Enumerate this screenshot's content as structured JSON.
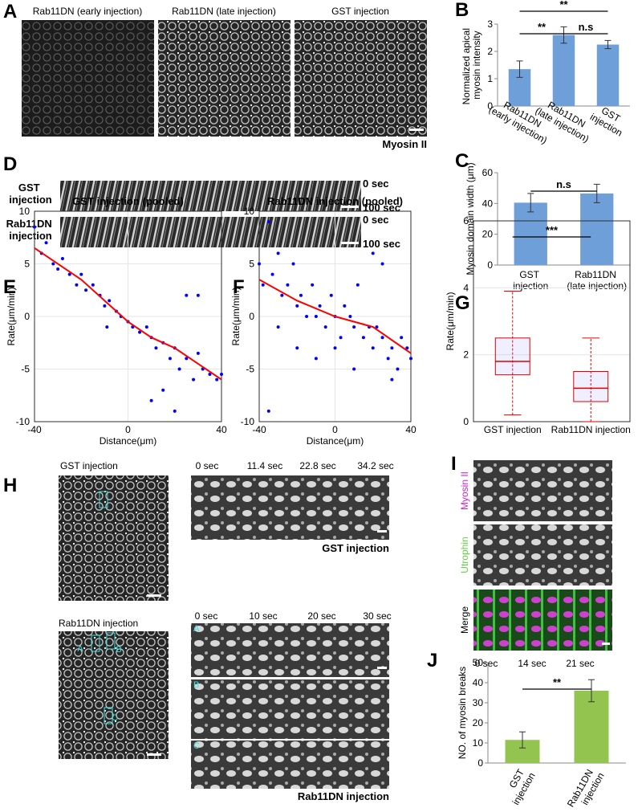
{
  "figure": {
    "letters": [
      "A",
      "B",
      "C",
      "D",
      "E",
      "F",
      "G",
      "H",
      "I",
      "J"
    ],
    "a_titles": [
      "Rab11DN (early injection)",
      "Rab11DN (late injection)",
      "GST injection"
    ],
    "a_stain": "Myosin II",
    "d_rows": [
      "GST injection",
      "Rab11DN injection"
    ],
    "d_times": [
      [
        "0 sec",
        "100 sec"
      ],
      [
        "0 sec",
        "100 sec"
      ]
    ],
    "h_left": [
      "GST injection",
      "Rab11DN injection"
    ],
    "h_roi": [
      "A",
      "B",
      "C"
    ],
    "h_times_gst": [
      "0 sec",
      "11.4 sec",
      "22.8 sec",
      "34.2 sec"
    ],
    "h_gst": "GST injection",
    "h_times_rab": [
      "0 sec",
      "10 sec",
      "20 sec",
      "30 sec"
    ],
    "h_strip_labels": [
      "A",
      "B",
      "C"
    ],
    "h_rab": "Rab11DN injection",
    "i_channels": [
      "Myosin II",
      "Utrophin",
      "Merge"
    ],
    "i_times": [
      "0 sec",
      "14 sec",
      "21 sec"
    ]
  },
  "chart_data": [
    {
      "type": "bar",
      "ylabel": "Normalized apical myosin intensity",
      "categories": [
        "Rab11DN (early injection)",
        "Rab11DN (late injection)",
        "GST injection"
      ],
      "values": [
        1.35,
        2.6,
        2.25
      ],
      "errors": [
        0.3,
        0.3,
        0.15
      ],
      "color": "#6f9fd8",
      "ylim": [
        0,
        3
      ],
      "yticks": [
        0,
        1,
        2,
        3
      ],
      "annotations": [
        "**",
        "**",
        "n.s"
      ]
    },
    {
      "type": "bar",
      "ylabel": "Myosin domain width (μm)",
      "categories": [
        "GST injection",
        "Rab11DN (late injection)"
      ],
      "values": [
        40.5,
        46.5
      ],
      "errors": [
        6,
        6
      ],
      "color": "#6f9fd8",
      "ylim": [
        0,
        60
      ],
      "yticks": [
        0,
        20,
        40,
        60
      ],
      "annotations": [
        "n.s"
      ]
    },
    {
      "type": "scatter",
      "title": "GST injection (pooled)",
      "xlabel": "Distance(μm)",
      "ylabel": "Rate(μm/min)",
      "xlim": [
        -40,
        40
      ],
      "xticks": [
        -40,
        0,
        40
      ],
      "ylim": [
        -10,
        10
      ],
      "yticks": [
        -10,
        -5,
        0,
        5,
        10
      ],
      "grid": true,
      "series": [
        {
          "color": "#0000ff",
          "x": [
            -40,
            -37,
            -35,
            -32,
            -30,
            -28,
            -25,
            -22,
            -20,
            -18,
            -15,
            -12,
            -10,
            -8,
            -5,
            -3,
            0,
            2,
            5,
            8,
            10,
            12,
            15,
            18,
            20,
            22,
            25,
            28,
            30,
            32,
            35,
            38,
            40,
            -9,
            25,
            30,
            10,
            15,
            20
          ],
          "values": [
            8.5,
            6,
            7,
            5,
            4.5,
            5.5,
            4,
            3,
            4,
            2.5,
            3,
            2,
            1,
            1.5,
            0.5,
            0,
            -0.5,
            -1,
            -1.5,
            -1,
            -2,
            -3,
            -2.5,
            -4,
            -3,
            -5,
            -4,
            -6,
            -3.5,
            -5,
            -5.5,
            -6,
            -5.5,
            -1,
            2,
            2,
            -8,
            -7,
            -9
          ]
        },
        {
          "color": "#ff0000",
          "type": "line",
          "x": [
            -40,
            -20,
            -10,
            0,
            10,
            20,
            30,
            40
          ],
          "values": [
            6.5,
            3.5,
            1.5,
            -0.5,
            -2,
            -3,
            -4.5,
            -6
          ]
        }
      ]
    },
    {
      "type": "scatter",
      "title": "Rab11DN injection (pooled)",
      "xlabel": "Distance(μm)",
      "ylabel": "Rate(μm/min)",
      "xlim": [
        -40,
        40
      ],
      "xticks": [
        -40,
        0,
        40
      ],
      "ylim": [
        -10,
        10
      ],
      "yticks": [
        -10,
        -5,
        0,
        5,
        10
      ],
      "grid": true,
      "series": [
        {
          "color": "#0000ff",
          "x": [
            -40,
            -38,
            -35,
            -33,
            -30,
            -28,
            -25,
            -22,
            -20,
            -18,
            -15,
            -12,
            -10,
            -8,
            -5,
            -2,
            0,
            3,
            5,
            8,
            10,
            12,
            15,
            18,
            20,
            22,
            25,
            28,
            30,
            33,
            35,
            38,
            40,
            -30,
            -20,
            -10,
            0,
            10,
            20,
            30,
            -35,
            25
          ],
          "values": [
            5,
            3,
            9,
            4,
            6,
            2,
            3,
            5,
            1,
            2,
            0,
            3,
            0,
            1,
            -1,
            2,
            0,
            -2,
            1,
            0,
            -1,
            3,
            -2,
            -1,
            -3,
            -1,
            -2,
            -4,
            -3,
            -5,
            -2,
            -3,
            -4,
            -1,
            -3,
            -4,
            -3,
            -5,
            6,
            -6,
            -9,
            5
          ]
        },
        {
          "color": "#ff0000",
          "type": "line",
          "x": [
            -40,
            -20,
            0,
            20,
            40
          ],
          "values": [
            3.5,
            1.5,
            0,
            -1,
            -3.5
          ]
        }
      ]
    },
    {
      "type": "box",
      "ylabel": "Rate(μm/min)",
      "categories": [
        "GST injection",
        "Rab11DN injection"
      ],
      "whisker_low": [
        0.2,
        0
      ],
      "q1": [
        1.4,
        0.6
      ],
      "median": [
        1.8,
        1.0
      ],
      "q3": [
        2.5,
        1.5
      ],
      "whisker_high": [
        3.9,
        2.5
      ],
      "color": "#e00000",
      "ylim": [
        0,
        6
      ],
      "yticks": [
        0,
        2,
        4,
        6
      ],
      "grid": true,
      "annotations": [
        "***"
      ]
    },
    {
      "type": "bar",
      "ylabel": "NO. of myosin breaks",
      "categories": [
        "GST injection",
        "Rab11DN injection"
      ],
      "values": [
        11.5,
        36
      ],
      "errors": [
        4,
        5.5
      ],
      "color": "#92c44f",
      "ylim": [
        0,
        50
      ],
      "yticks": [
        0,
        10,
        20,
        30,
        40,
        50
      ],
      "annotations": [
        "**"
      ]
    }
  ]
}
